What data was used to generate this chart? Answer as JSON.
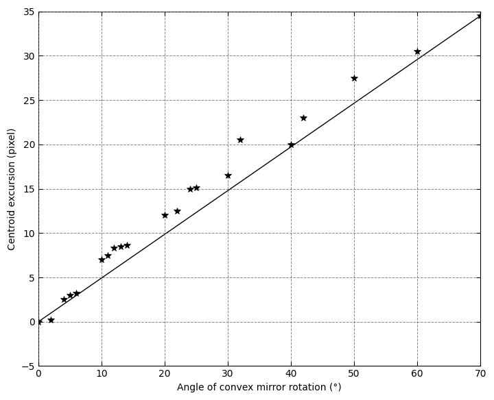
{
  "scatter_x": [
    0,
    2,
    4,
    5,
    6,
    10,
    11,
    12,
    13,
    14,
    20,
    22,
    24,
    25,
    30,
    32,
    40,
    42,
    50,
    60,
    70
  ],
  "scatter_y": [
    0,
    0.2,
    2.5,
    3.0,
    3.2,
    7.0,
    7.5,
    8.3,
    8.5,
    8.6,
    12.0,
    12.5,
    15.0,
    15.1,
    16.5,
    20.5,
    20.0,
    23.0,
    27.5,
    30.5,
    34.5
  ],
  "line_x": [
    0,
    70
  ],
  "line_y": [
    0,
    34.5
  ],
  "xlabel": "Angle of convex mirror rotation (°)",
  "ylabel": "Centroid excursion (pixel)",
  "xlim": [
    0,
    70
  ],
  "ylim": [
    -5,
    35
  ],
  "xticks": [
    0,
    10,
    20,
    30,
    40,
    50,
    60,
    70
  ],
  "yticks": [
    -5,
    0,
    5,
    10,
    15,
    20,
    25,
    30,
    35
  ],
  "line_color": "#000000",
  "scatter_color": "#000000",
  "background_color": "#ffffff",
  "grid_color": "#555555",
  "marker_size": 7,
  "line_width": 1.0,
  "xlabel_fontsize": 10,
  "ylabel_fontsize": 10,
  "tick_fontsize": 10
}
